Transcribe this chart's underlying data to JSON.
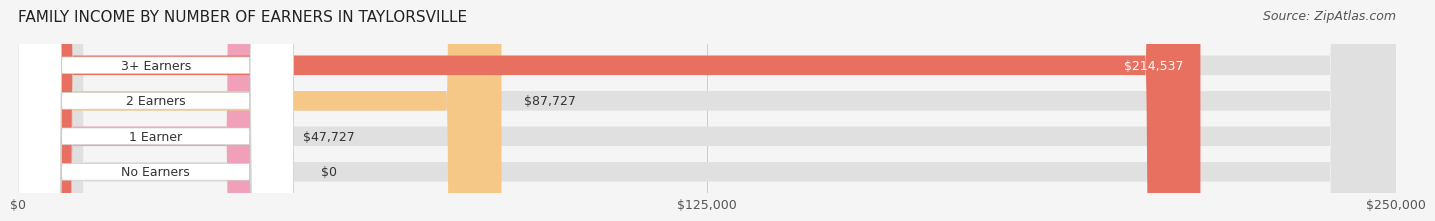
{
  "title": "FAMILY INCOME BY NUMBER OF EARNERS IN TAYLORSVILLE",
  "source": "Source: ZipAtlas.com",
  "categories": [
    "No Earners",
    "1 Earner",
    "2 Earners",
    "3+ Earners"
  ],
  "values": [
    0,
    47727,
    87727,
    214537
  ],
  "bar_colors": [
    "#a8a8d8",
    "#f0a0b8",
    "#f5c888",
    "#e87060"
  ],
  "bar_bg_color": "#e8e8e8",
  "background_color": "#f5f5f5",
  "bar_bg_full": "#e0e0e0",
  "xlim": [
    0,
    250000
  ],
  "xticks": [
    0,
    125000,
    250000
  ],
  "xtick_labels": [
    "$0",
    "$125,000",
    "$250,000"
  ],
  "value_labels": [
    "$0",
    "$47,727",
    "$87,727",
    "$214,537"
  ],
  "label_inside": [
    false,
    false,
    false,
    true
  ],
  "title_fontsize": 11,
  "source_fontsize": 9,
  "tick_fontsize": 9,
  "bar_label_fontsize": 9,
  "bar_height": 0.55,
  "bar_bg_alpha": 0.5
}
